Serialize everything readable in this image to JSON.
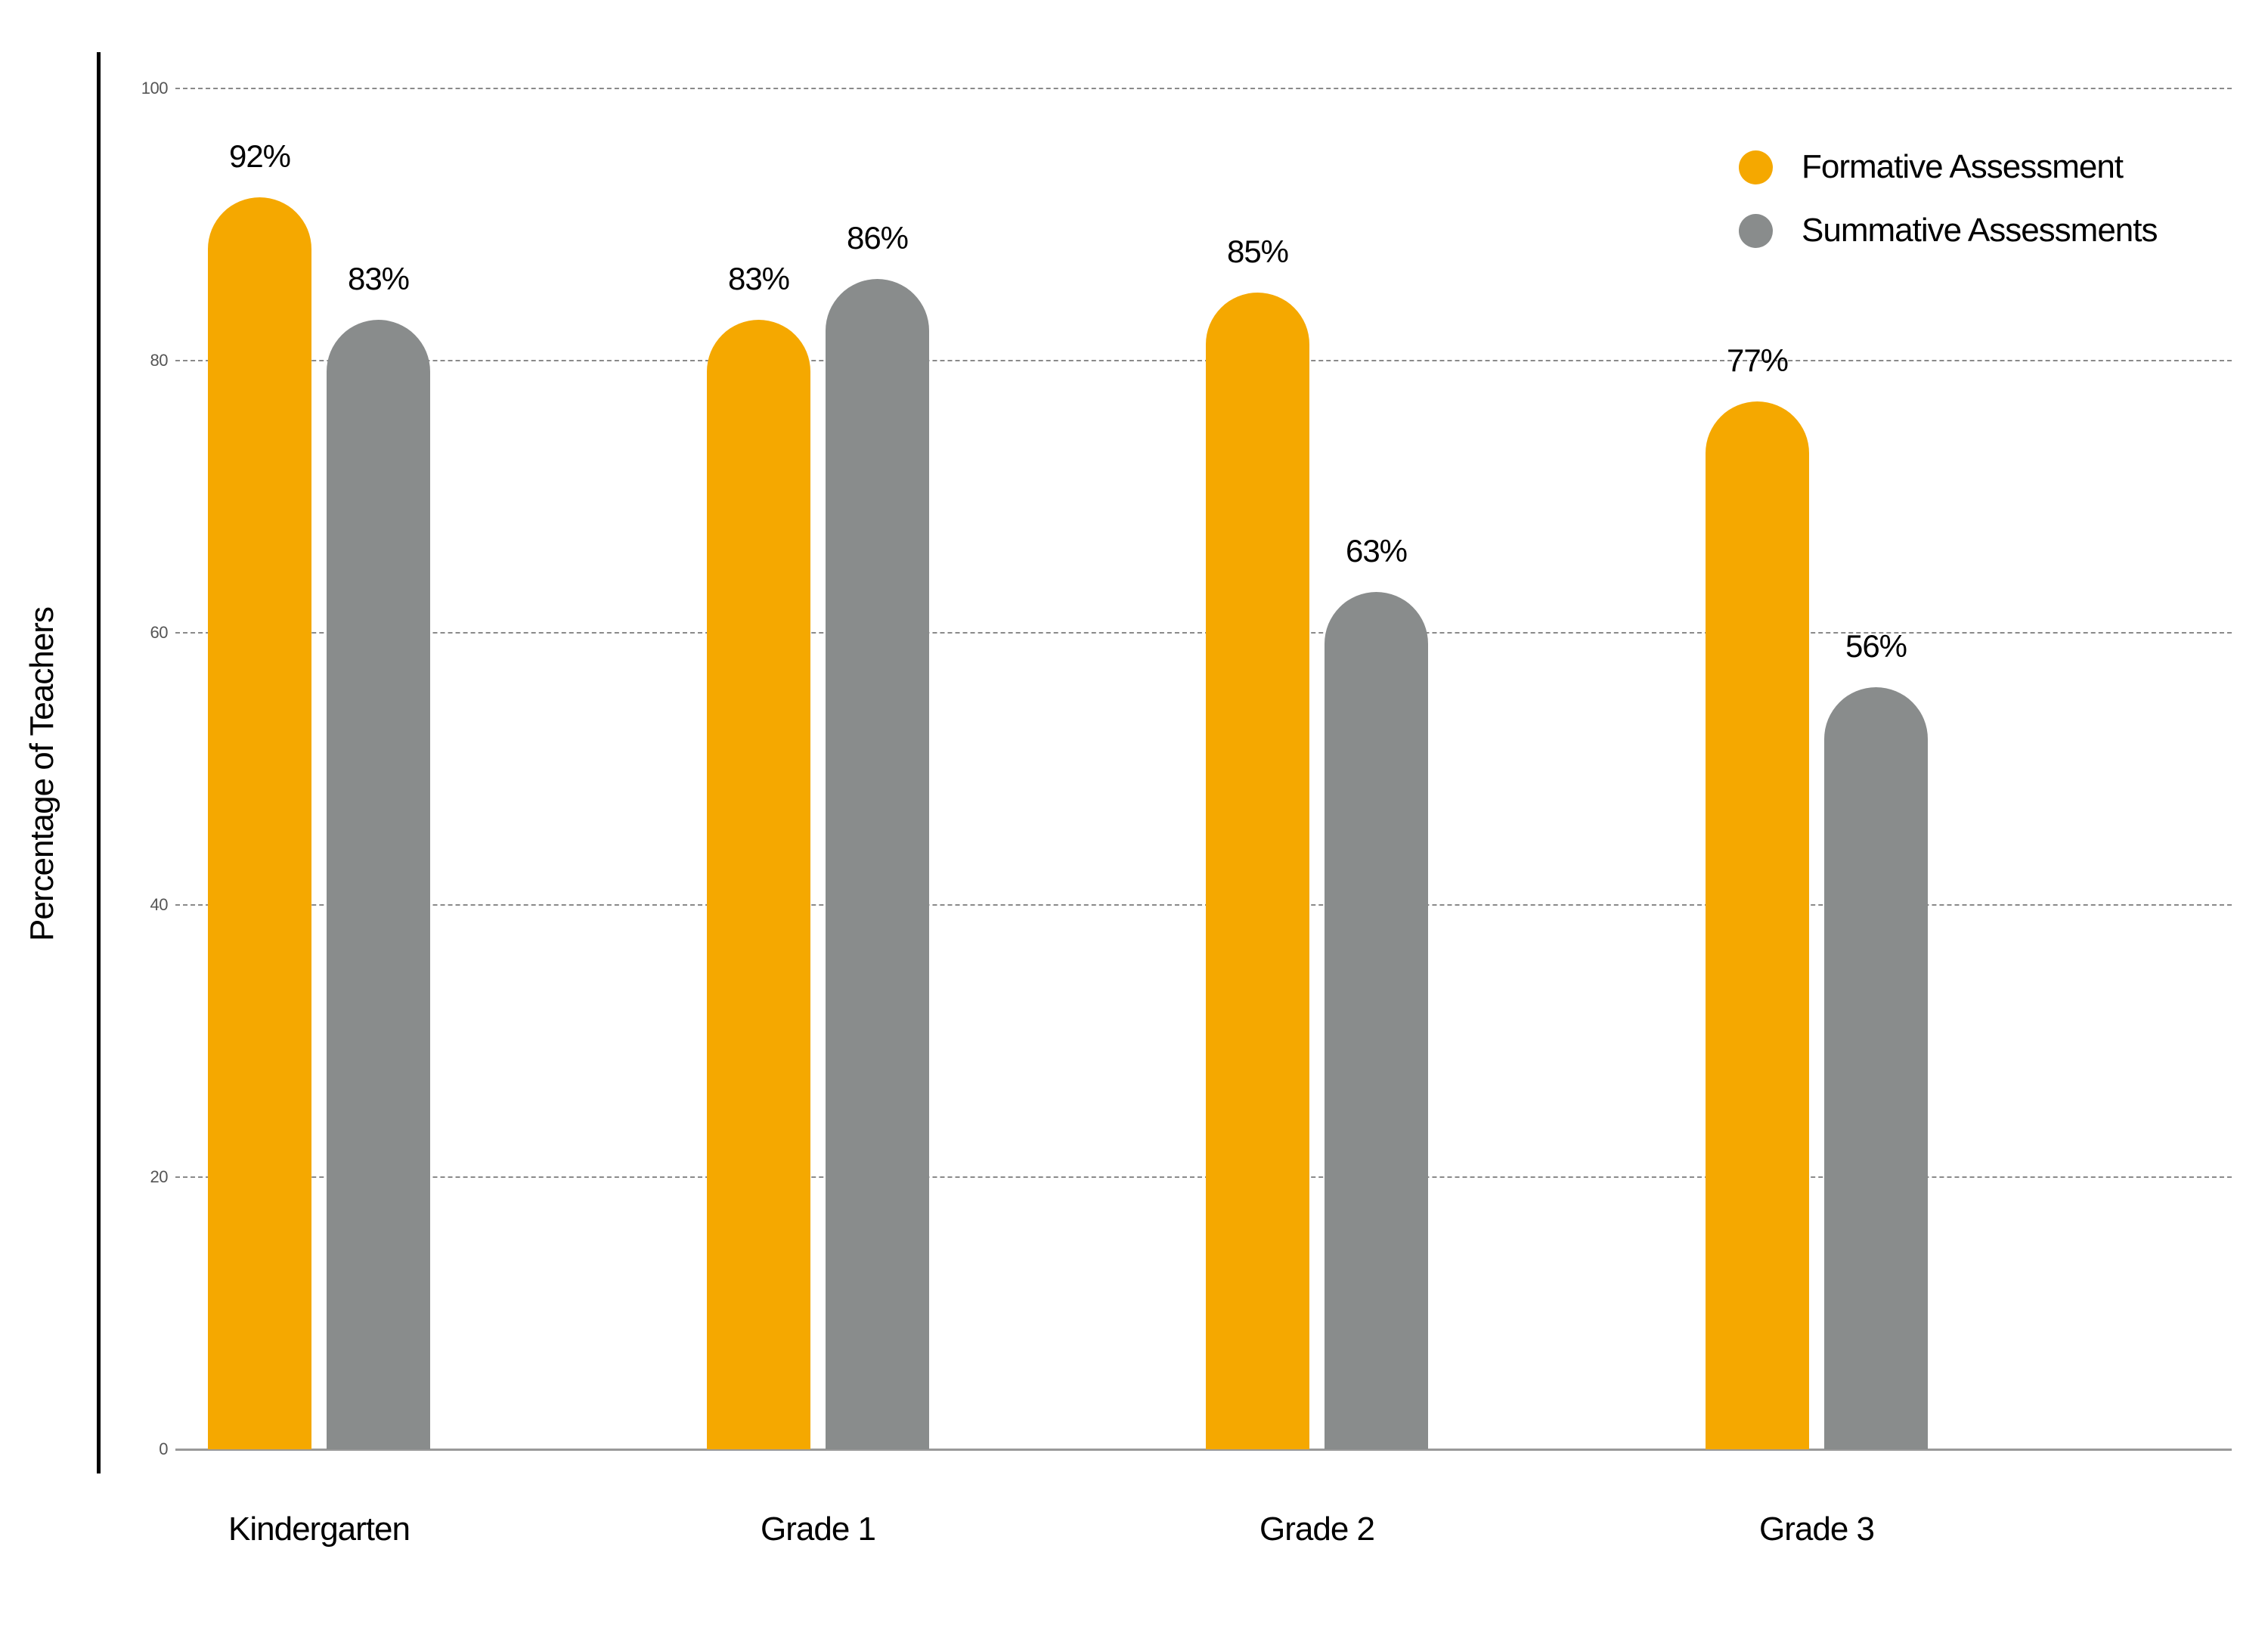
{
  "chart_data": {
    "type": "bar",
    "title": "",
    "xlabel": "",
    "ylabel": "Percentage of Teachers",
    "ylim": [
      0,
      100
    ],
    "yticks": [
      0,
      20,
      40,
      60,
      80,
      100
    ],
    "grid": true,
    "legend_position": "top-right",
    "categories": [
      "Kindergarten",
      "Grade 1",
      "Grade 2",
      "Grade 3"
    ],
    "series": [
      {
        "name": "Formative Assessment",
        "color": "#F5A800",
        "values": [
          92,
          83,
          85,
          77
        ],
        "labels": [
          "92%",
          "83%",
          "85%",
          "77%"
        ]
      },
      {
        "name": "Summative Assessments",
        "color": "#898C8C",
        "values": [
          83,
          86,
          63,
          56
        ],
        "labels": [
          "83%",
          "86%",
          "63%",
          "56%"
        ]
      }
    ]
  },
  "axis": {
    "ylabel": "Percentage of Teachers",
    "ticks": [
      "0",
      "20",
      "40",
      "60",
      "80",
      "100"
    ]
  },
  "legend": {
    "items": [
      {
        "label": "Formative Assessment",
        "color": "#F5A800"
      },
      {
        "label": "Summative Assessments",
        "color": "#898C8C"
      }
    ]
  }
}
